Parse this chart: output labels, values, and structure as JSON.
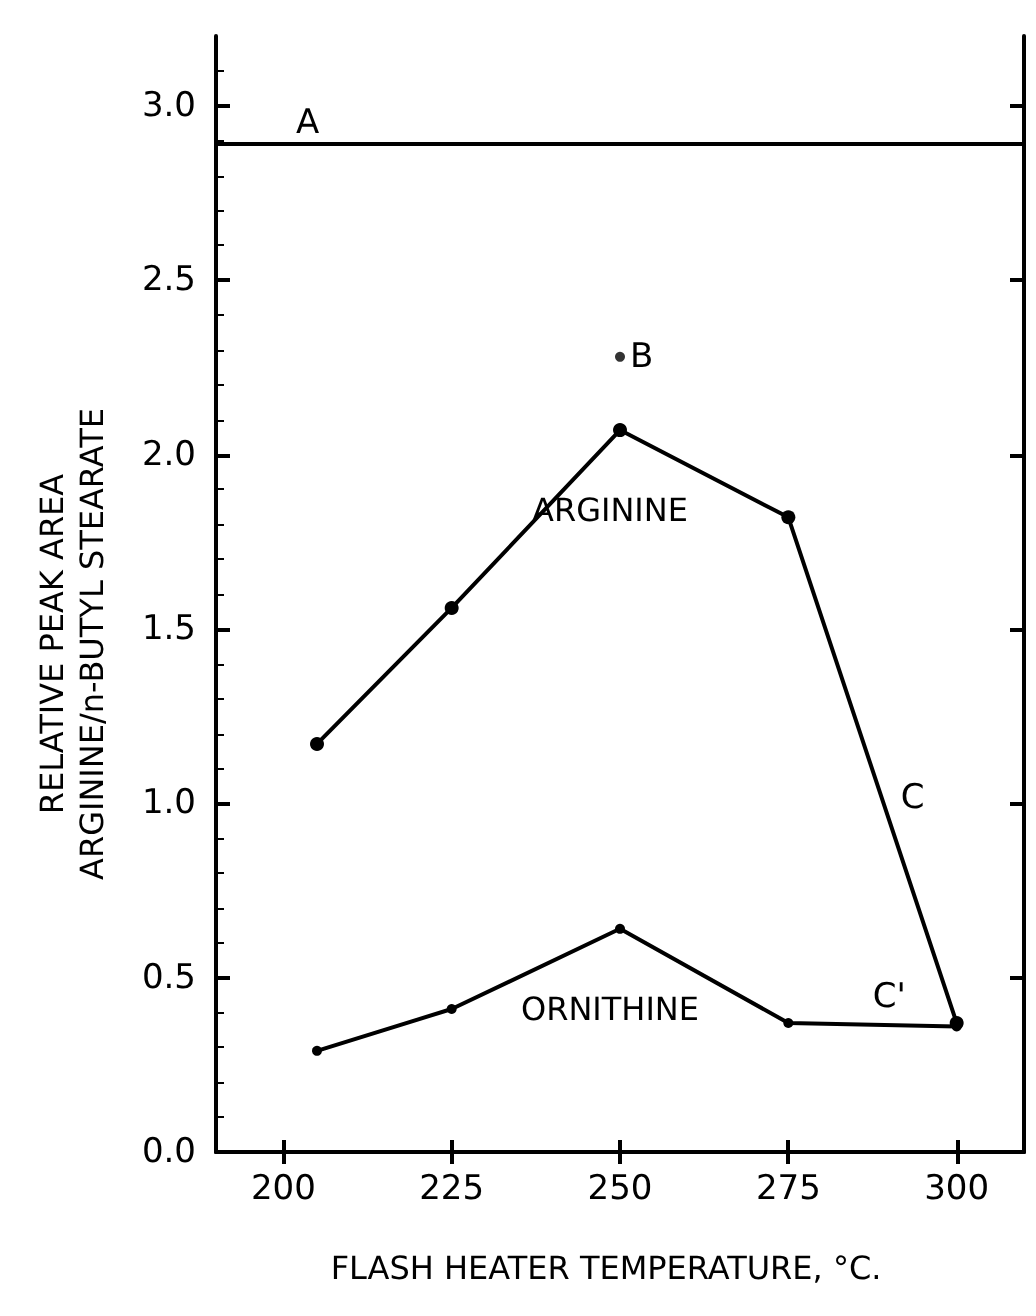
{
  "chart_data": {
    "type": "line",
    "xlabel": "FLASH HEATER TEMPERATURE, °C.",
    "ylabel": "RELATIVE PEAK AREA\nARGININE/n-BUTYL STEARATE",
    "x": [
      205,
      225,
      250,
      275,
      300
    ],
    "series": [
      {
        "name": "ARGININE",
        "color": "#000000",
        "values": [
          1.17,
          1.56,
          2.07,
          1.82,
          0.37
        ]
      },
      {
        "name": "ORNITHINE",
        "color": "#000000",
        "values": [
          0.29,
          0.41,
          0.64,
          0.37,
          0.36
        ]
      },
      {
        "type": "scatter",
        "color": "#000000",
        "x": [
          250
        ],
        "values": [
          2.28
        ]
      }
    ],
    "xlim": [
      190,
      310
    ],
    "xticks": [
      200,
      225,
      250,
      275,
      300
    ],
    "ylim": [
      0,
      3.2
    ],
    "yticks": [
      {
        "value": 0,
        "label": "0.0"
      },
      {
        "value": 0.5,
        "label": "0.5"
      },
      {
        "value": 1,
        "label": "1.0"
      },
      {
        "value": 1.5,
        "label": "1.5"
      },
      {
        "value": 2,
        "label": "2.0"
      },
      {
        "value": 2.5,
        "label": "2.5"
      },
      {
        "value": 3,
        "label": "3.0"
      }
    ],
    "ref_lines": [
      {
        "axis": "y",
        "value": 2.89,
        "label": "A",
        "color": "#000000"
      }
    ],
    "annotations": [
      {
        "text": "B",
        "x": 250,
        "y": 2.28
      },
      "C",
      "C'"
    ],
    "grid": false,
    "legend": false,
    "marker": "circle",
    "line_style": "solid"
  }
}
